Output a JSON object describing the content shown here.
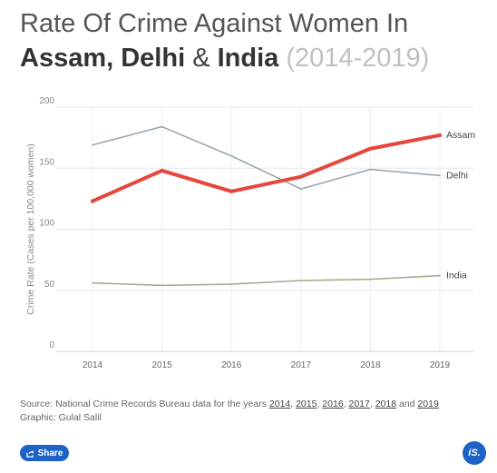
{
  "title": {
    "line1": "Rate Of Crime Against Women In",
    "assam": "Assam,",
    "delhi": "Delhi",
    "amp": "&",
    "india": "India",
    "years": "(2014-2019)"
  },
  "chart_data": {
    "type": "line",
    "x": [
      "2014",
      "2015",
      "2016",
      "2017",
      "2018",
      "2019"
    ],
    "ylabel": "Crime Rate (Cases per 100,000 women)",
    "xlabel": "",
    "ylim": [
      0,
      200
    ],
    "yticks": [
      0,
      50,
      100,
      150,
      200
    ],
    "grid": true,
    "series": [
      {
        "name": "Assam",
        "values": [
          123,
          148,
          131,
          143,
          166,
          177
        ],
        "color": "#e5473c",
        "emphasis": true
      },
      {
        "name": "Delhi",
        "values": [
          169,
          184,
          160,
          133,
          149,
          144
        ],
        "color": "#94a3ad",
        "emphasis": false
      },
      {
        "name": "India",
        "values": [
          56,
          54,
          55,
          58,
          59,
          62
        ],
        "color": "#a3a58c",
        "emphasis": false
      }
    ]
  },
  "footer": {
    "source_prefix": "Source: National Crime Records Bureau data for the years ",
    "years": [
      "2014",
      "2015",
      "2016",
      "2017",
      "2018"
    ],
    "and": " and ",
    "last_year": "2019",
    "graphic": "Graphic: Gulal Salil"
  },
  "share": {
    "label": "Share",
    "icon": "share-icon",
    "color": "#1d63c7"
  },
  "brand": {
    "label": "iS."
  }
}
